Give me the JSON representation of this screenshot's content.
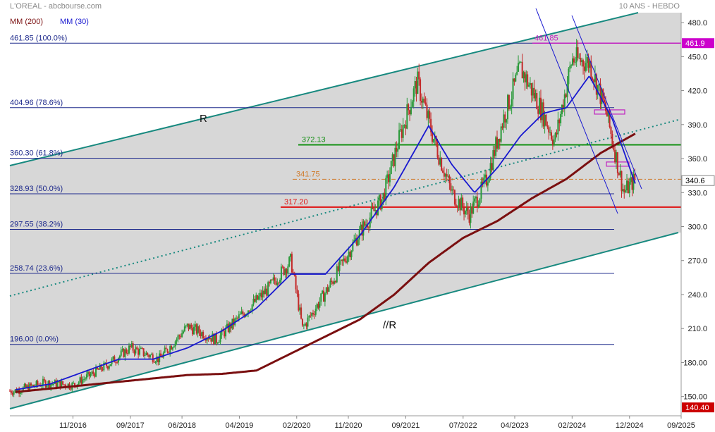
{
  "header": {
    "title": "L'OREAL - abcbourse.com",
    "period": "10 ANS - HEBDO",
    "legend_mm200": "MM (200)",
    "legend_mm30": "MM (30)"
  },
  "colors": {
    "background": "#ffffff",
    "channel_fill": "#d7d7d7",
    "channel_line": "#17897f",
    "mm200": "#7a0f10",
    "mm30": "#1818d0",
    "fib": "#1e2a8c",
    "candle_up": "#2a9a3a",
    "candle_down": "#c42a2a",
    "green_level": "#159015",
    "red_level": "#e01010",
    "orange_level": "#d07a2a",
    "magenta": "#c020c0",
    "last_price_tag": "#cc0000",
    "max_tag": "#cc00cc"
  },
  "chart_data": {
    "type": "line",
    "title": "L'OREAL - abcbourse.com",
    "subtitle": "10 ANS - HEBDO",
    "x_tick_labels": [
      "11/2016",
      "09/2017",
      "06/2018",
      "04/2019",
      "02/2020",
      "11/2020",
      "09/2021",
      "07/2022",
      "04/2023",
      "02/2024",
      "12/2024",
      "09/2025"
    ],
    "y_tick_labels": [
      "150.00",
      "180.00",
      "210.0",
      "240.0",
      "270.0",
      "300.0",
      "330.0",
      "360.0",
      "390.0",
      "420.0",
      "450.0",
      "480.0"
    ],
    "ylim": [
      140.4,
      485
    ],
    "grid": false,
    "legend_position": "top-left",
    "series": [
      {
        "name": "MM (200)",
        "x": [
          "2016-01",
          "2016-07",
          "2017-01",
          "2017-07",
          "2018-01",
          "2018-07",
          "2019-01",
          "2019-07",
          "2020-01",
          "2020-07",
          "2021-01",
          "2021-07",
          "2022-01",
          "2022-07",
          "2023-01",
          "2023-07",
          "2024-01",
          "2024-07",
          "2025-01"
        ],
        "values": [
          154,
          157,
          160,
          163,
          166,
          169,
          170,
          173,
          188,
          203,
          218,
          240,
          268,
          290,
          305,
          325,
          342,
          365,
          382
        ]
      },
      {
        "name": "MM (30)",
        "x": [
          "2016-01",
          "2016-07",
          "2017-01",
          "2017-07",
          "2018-01",
          "2018-07",
          "2019-01",
          "2019-07",
          "2020-01",
          "2020-07",
          "2021-01",
          "2021-07",
          "2022-01",
          "2022-05",
          "2022-09",
          "2023-01",
          "2023-05",
          "2023-09",
          "2024-01",
          "2024-05",
          "2024-09",
          "2025-01"
        ],
        "values": [
          156,
          161,
          172,
          183,
          183,
          193,
          208,
          228,
          258,
          258,
          292,
          335,
          389,
          355,
          330,
          352,
          380,
          400,
          405,
          433,
          395,
          338
        ]
      },
      {
        "name": "Cours",
        "x": [
          "2016-01",
          "2016-06",
          "2016-11",
          "2017-05",
          "2017-09",
          "2018-02",
          "2018-07",
          "2018-12",
          "2019-04",
          "2019-09",
          "2020-01",
          "2020-03",
          "2020-08",
          "2021-01",
          "2021-05",
          "2021-08",
          "2021-11",
          "2022-02",
          "2022-05",
          "2022-08",
          "2022-11",
          "2023-02",
          "2023-05",
          "2023-08",
          "2023-11",
          "2024-02",
          "2024-05",
          "2024-08",
          "2024-11",
          "2025-01"
        ],
        "values": [
          155,
          162,
          160,
          178,
          193,
          183,
          212,
          200,
          220,
          245,
          270,
          210,
          250,
          295,
          325,
          380,
          428,
          375,
          330,
          310,
          340,
          395,
          440,
          410,
          375,
          448,
          445,
          400,
          330,
          342
        ]
      }
    ],
    "fibonacci_levels": [
      {
        "label": "461.85  (100.0%)",
        "value": 461.85
      },
      {
        "label": "404.96  (78.6%)",
        "value": 404.96
      },
      {
        "label": "360.30  (61.8%)",
        "value": 360.3
      },
      {
        "label": "328.93  (50.0%)",
        "value": 328.93
      },
      {
        "label": "297.55  (38.2%)",
        "value": 297.55
      },
      {
        "label": "258.74  (23.6%)",
        "value": 258.74
      },
      {
        "label": "196.00  (0.0%)",
        "value": 196.0
      }
    ],
    "annotations": {
      "max_label": "461.85",
      "green_level": "372.13",
      "orange_level": "341.75",
      "red_level": "317.20",
      "channel_upper_text": "R",
      "channel_lower_text": "//R"
    },
    "price_tags": {
      "max_tag": "461.9",
      "last_tag": "340.6",
      "min_tag": "140.40"
    }
  }
}
